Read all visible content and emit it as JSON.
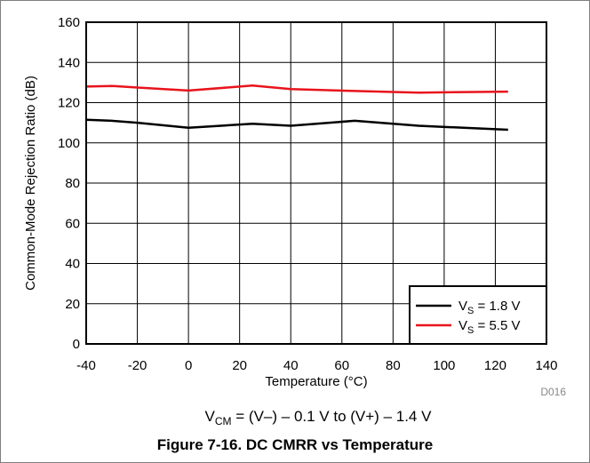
{
  "chart_data": {
    "type": "line",
    "xlabel": "Temperature (°C)",
    "ylabel": "Common-Mode Rejection Ratio (dB)",
    "xlim": [
      -40,
      140
    ],
    "ylim": [
      0,
      160
    ],
    "x_ticks": [
      -40,
      -20,
      0,
      20,
      40,
      60,
      80,
      100,
      120,
      140
    ],
    "y_ticks": [
      0,
      20,
      40,
      60,
      80,
      100,
      120,
      140,
      160
    ],
    "grid": true,
    "legend_position": "bottom-right",
    "series": [
      {
        "name": "VS = 1.8 V",
        "name_parts": {
          "main": "V",
          "sub": "S",
          "rest": " = 1.8 V"
        },
        "color": "#000000",
        "x": [
          -40,
          -30,
          -20,
          0,
          25,
          40,
          65,
          90,
          125
        ],
        "y": [
          111.5,
          111,
          110,
          107.5,
          109.5,
          108.5,
          111,
          108.5,
          106.5
        ]
      },
      {
        "name": "VS = 5.5 V",
        "name_parts": {
          "main": "V",
          "sub": "S",
          "rest": " = 5.5 V"
        },
        "color": "#e8141c",
        "x": [
          -40,
          -30,
          -20,
          0,
          25,
          40,
          65,
          90,
          125
        ],
        "y": [
          128,
          128.3,
          127.5,
          126,
          128.5,
          126.7,
          125.8,
          125,
          125.5
        ]
      }
    ],
    "code": "D016",
    "condition_parts": [
      {
        "text": "V"
      },
      {
        "text": "CM",
        "sub": true
      },
      {
        "text": " = (V–) – 0.1 V to (V+) – 1.4 V"
      }
    ],
    "title": "Figure 7-16. DC CMRR vs Temperature"
  }
}
